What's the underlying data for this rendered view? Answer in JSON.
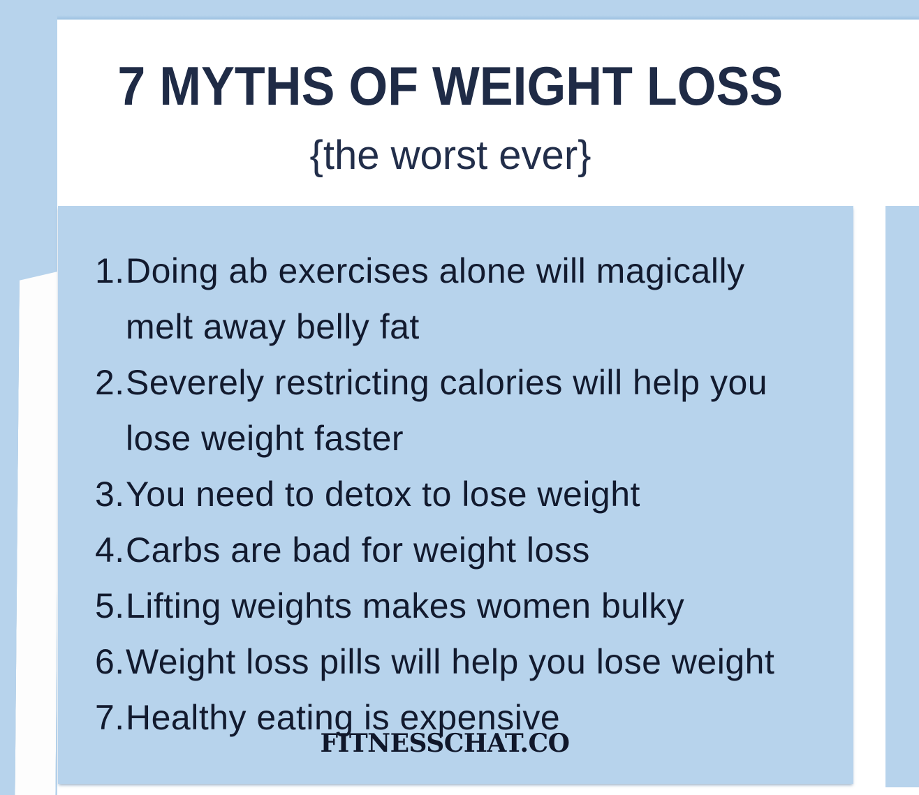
{
  "colors": {
    "background_blue": "#b7d3ec",
    "sheet_white": "#ffffff",
    "title_navy": "#1f2b46",
    "body_text_navy": "#121a2e",
    "watermark_navy": "#10172a"
  },
  "header": {
    "title": "7 MYTHS OF WEIGHT LOSS",
    "subtitle": "{the worst ever}"
  },
  "myths": {
    "items": [
      {
        "number": "1.",
        "lines": [
          "Doing ab exercises alone will magically",
          "melt away belly fat"
        ]
      },
      {
        "number": "2.",
        "lines": [
          "Severely restricting calories will help you",
          "lose weight faster"
        ]
      },
      {
        "number": "3.",
        "lines": [
          "You need to detox to lose weight"
        ]
      },
      {
        "number": "4.",
        "lines": [
          "Carbs are bad for weight loss"
        ]
      },
      {
        "number": "5.",
        "lines": [
          "Lifting weights makes women bulky"
        ]
      },
      {
        "number": "6.",
        "lines": [
          "Weight loss pills will help you lose weight"
        ]
      },
      {
        "number": "7.",
        "lines": [
          "Healthy eating is expensive"
        ]
      }
    ]
  },
  "footer": {
    "watermark": "FITNESSCHAT.CO"
  }
}
